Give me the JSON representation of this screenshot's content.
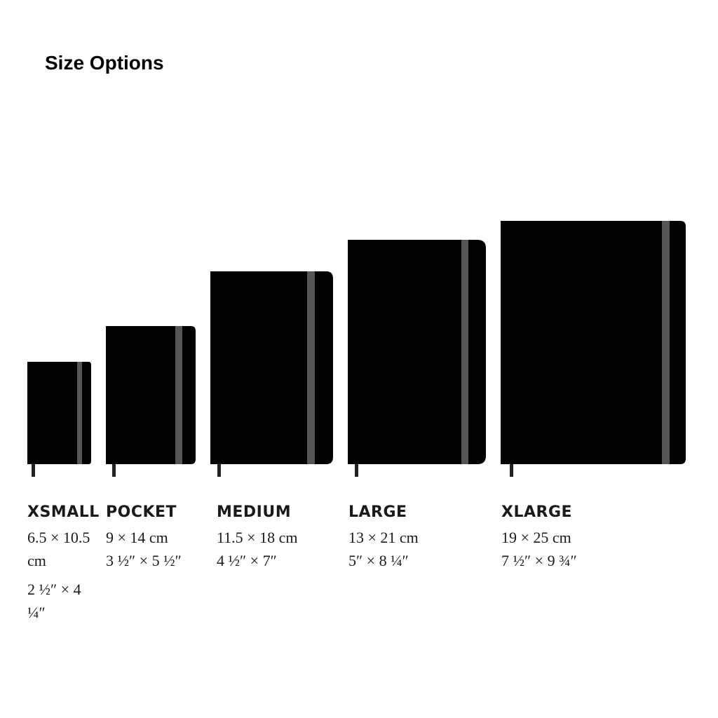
{
  "header": {
    "title": "Size Options"
  },
  "sizes": [
    {
      "name": "XSMALL",
      "metric": "6.5 × 10.5 cm",
      "imperial": "2 ½″ × 4 ¼″"
    },
    {
      "name": "POCKET",
      "metric": "9 × 14 cm",
      "imperial": "3 ½″ × 5 ½″"
    },
    {
      "name": "MEDIUM",
      "metric": "11.5 × 18 cm",
      "imperial": "4 ½″ × 7″"
    },
    {
      "name": "LARGE",
      "metric": "13 × 21 cm",
      "imperial": "5″ × 8 ¼″"
    },
    {
      "name": "XLARGE",
      "metric": "19 × 25 cm",
      "imperial": "7 ½″ × 9 ¾″"
    }
  ]
}
